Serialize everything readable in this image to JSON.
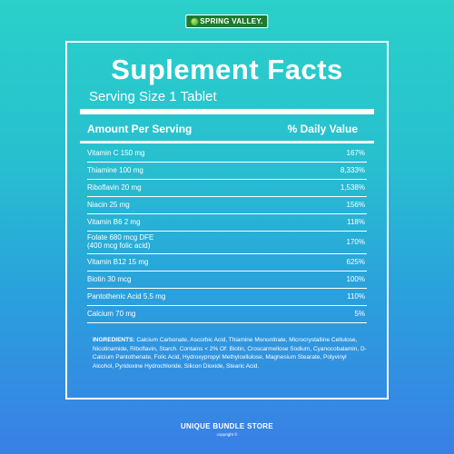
{
  "brand": {
    "logo_text": "SPRING VALLEY."
  },
  "panel": {
    "title": "Suplement Facts",
    "serving_size": "Serving Size 1 Tablet",
    "header": {
      "amount": "Amount Per Serving",
      "daily_value": "% Daily Value"
    },
    "rows": [
      {
        "name": "Vitamin  C  150  mg",
        "pct": "167%"
      },
      {
        "name": "Thiamine  100 mg",
        "pct": "8,333%"
      },
      {
        "name": "Riboflavin  20 mg",
        "pct": "1,538%"
      },
      {
        "name": "Niacin  25  mg",
        "pct": "156%"
      },
      {
        "name": "Vitamin B6  2  mg",
        "pct": "118%"
      },
      {
        "name": "Folate 680 mcg  DFE",
        "name2": "(400 mcg folic acid)",
        "pct": "170%"
      },
      {
        "name": "Vitamin B12  15  mg",
        "pct": "625%"
      },
      {
        "name": "Biotin  30 mcg",
        "pct": "100%"
      },
      {
        "name": "Pantothenic Acid 5.5    mg",
        "pct": "110%"
      },
      {
        "name": "Calcium 70 mg",
        "pct": "5%"
      }
    ],
    "ingredients_label": "INGREDIENTS:",
    "ingredients_text": "Calcium Carbonate, Ascorbic Acid, Thiamine Mononitrate, Microcrystalline Cellulose, Nicotinamide, Riboflavin, Starch. Contains < 2% Of: Biotin, Croscarmellose Sodium, Cyanocobalamin, D-Calcium Pantothenate, Folic Acid, Hydroxypropyl Methylcellulose, Magnesium Stearate, Polyvinyl Alcohol, Pyridoxine Hydrochloride, Silicon Dioxide, Stearic Acid."
  },
  "footer": {
    "store": "UNIQUE BUNDLE STORE",
    "copyright": "copyright ©"
  },
  "colors": {
    "background_top": "#2ad0c9",
    "background_bottom": "#3a7fe6",
    "brand_green": "#1f7a2e"
  }
}
